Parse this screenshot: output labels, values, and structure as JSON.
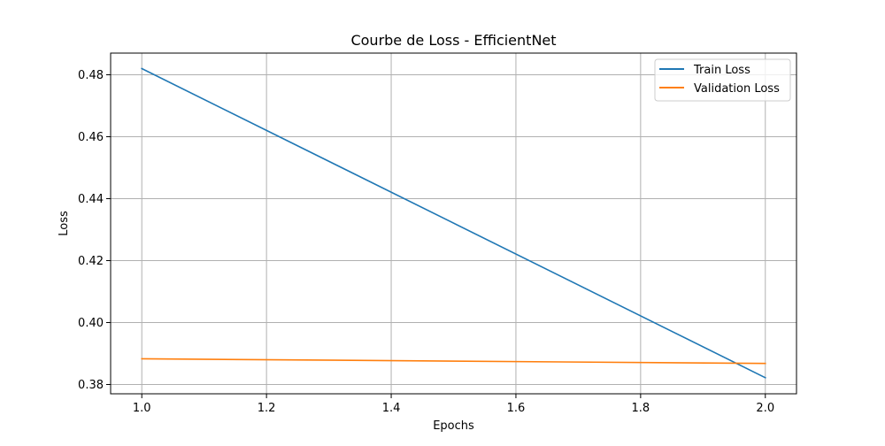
{
  "chart_data": {
    "type": "line",
    "title": "Courbe de Loss - EfficientNet",
    "xlabel": "Epochs",
    "ylabel": "Loss",
    "xlim": [
      0.95,
      2.05
    ],
    "ylim": [
      0.377,
      0.487
    ],
    "xticks": [
      1.0,
      1.2,
      1.4,
      1.6,
      1.8,
      2.0
    ],
    "xtick_labels": [
      "1.0",
      "1.2",
      "1.4",
      "1.6",
      "1.8",
      "2.0"
    ],
    "yticks": [
      0.38,
      0.4,
      0.42,
      0.44,
      0.46,
      0.48
    ],
    "ytick_labels": [
      "0.38",
      "0.40",
      "0.42",
      "0.44",
      "0.46",
      "0.48"
    ],
    "grid": true,
    "legend_position": "top-right",
    "series": [
      {
        "name": "Train Loss",
        "color": "#1f77b4",
        "x": [
          1,
          2
        ],
        "y": [
          0.482,
          0.3822
        ]
      },
      {
        "name": "Validation Loss",
        "color": "#ff7f0e",
        "x": [
          1,
          2
        ],
        "y": [
          0.3883,
          0.3868
        ]
      }
    ]
  }
}
